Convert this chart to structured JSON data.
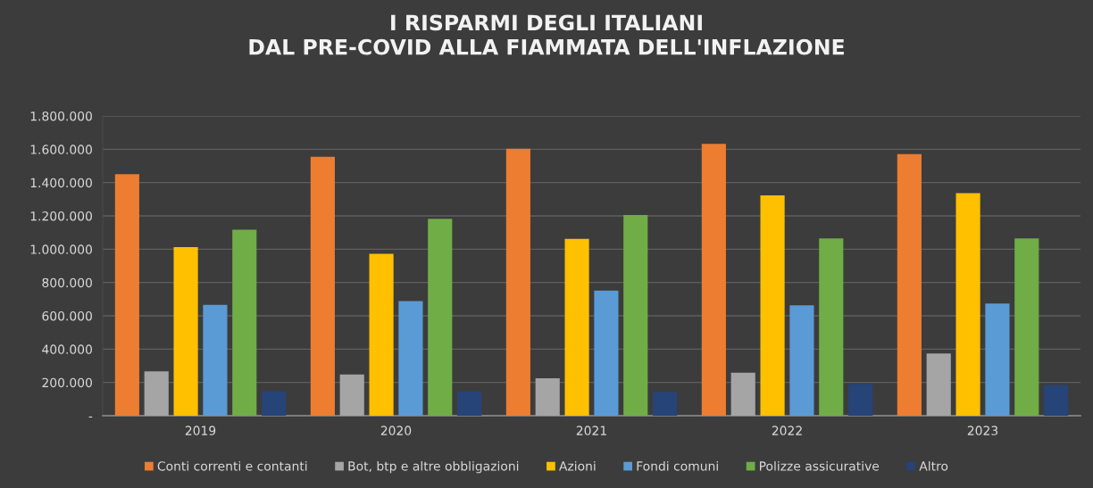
{
  "chart_data": {
    "type": "bar",
    "title": "I RISPARMI DEGLI ITALIANI\nDAL PRE-COVID ALLA FIAMMATA DELL'INFLAZIONE",
    "categories": [
      "2019",
      "2020",
      "2021",
      "2022",
      "2023"
    ],
    "series": [
      {
        "name": "Conti correnti e contanti",
        "color": "#ed7d31",
        "values": [
          1450000,
          1555000,
          1603000,
          1632000,
          1571000
        ]
      },
      {
        "name": "Bot, btp e altre obbligazioni",
        "color": "#a5a5a5",
        "values": [
          266000,
          248000,
          225000,
          259000,
          374000
        ]
      },
      {
        "name": "Azioni",
        "color": "#ffc000",
        "values": [
          1013000,
          972000,
          1062000,
          1323000,
          1337000
        ]
      },
      {
        "name": "Fondi comuni",
        "color": "#5b9bd5",
        "values": [
          665000,
          688000,
          752000,
          663000,
          674000
        ]
      },
      {
        "name": "Polizze assicurative",
        "color": "#70ad47",
        "values": [
          1117000,
          1183000,
          1206000,
          1065000,
          1065000
        ]
      },
      {
        "name": "Altro",
        "color": "#264478",
        "values": [
          147000,
          147000,
          143000,
          191000,
          184000
        ]
      }
    ],
    "ylim": [
      0,
      1800000
    ],
    "yticks": [
      {
        "value": 0,
        "label": "-"
      },
      {
        "value": 200000,
        "label": "200.000"
      },
      {
        "value": 400000,
        "label": "400.000"
      },
      {
        "value": 600000,
        "label": "600.000"
      },
      {
        "value": 800000,
        "label": "800.000"
      },
      {
        "value": 1000000,
        "label": "1.000.000"
      },
      {
        "value": 1200000,
        "label": "1.200.000"
      },
      {
        "value": 1400000,
        "label": "1.400.000"
      },
      {
        "value": 1600000,
        "label": "1.600.000"
      },
      {
        "value": 1800000,
        "label": "1.800.000"
      }
    ],
    "grid": "y",
    "legend": "bottom"
  }
}
